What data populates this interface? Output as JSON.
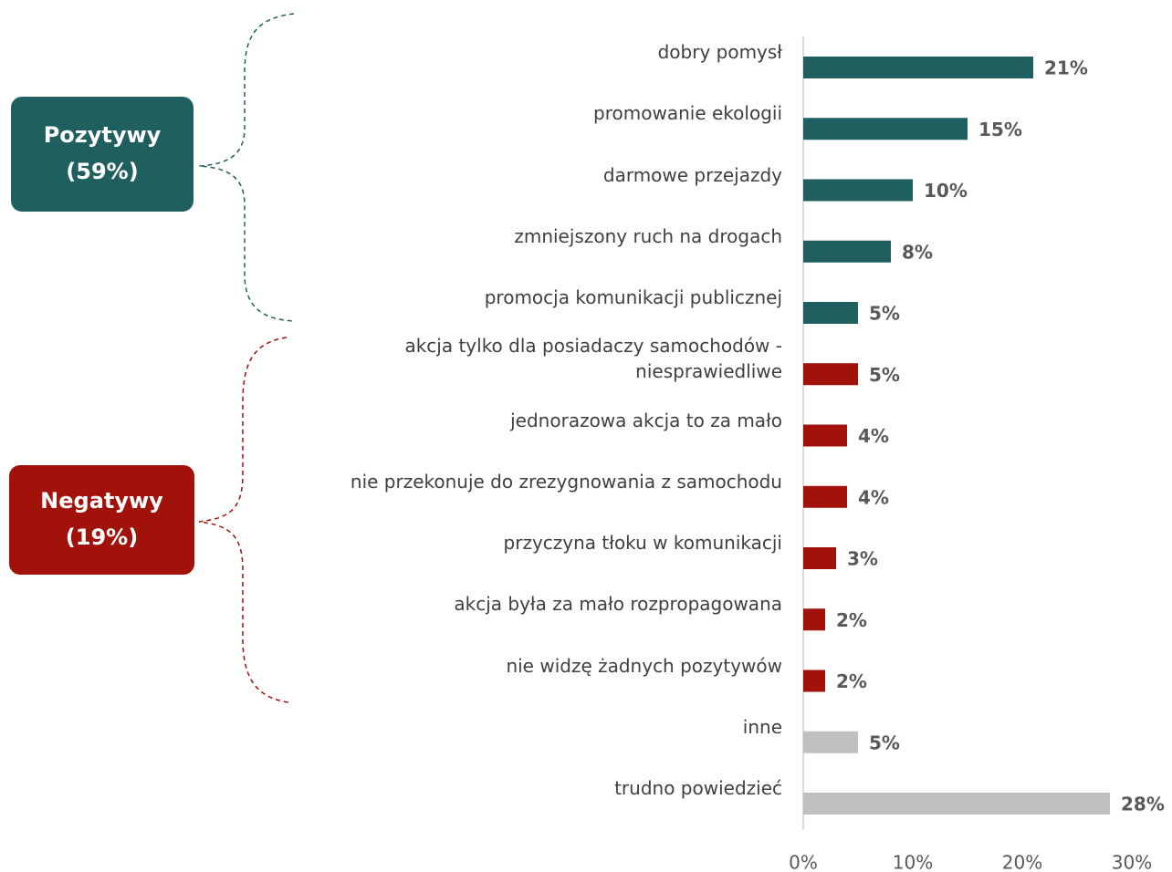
{
  "chart_data": {
    "type": "bar",
    "orientation": "horizontal",
    "categories": [
      "dobry pomysł",
      "promowanie ekologii",
      "darmowe przejazdy",
      "zmniejszony ruch na drogach",
      "promocja komunikacji publicznej",
      "akcja tylko dla posiadaczy samochodów - niesprawiedliwe",
      "jednorazowa akcja to za mało",
      "nie przekonuje do zrezygnowania z samochodu",
      "przyczyna tłoku w komunikacji",
      "akcja była za mało rozpropagowana",
      "nie widzę żadnych pozytywów",
      "inne",
      "trudno powiedzieć"
    ],
    "values": [
      21,
      15,
      10,
      8,
      5,
      5,
      4,
      4,
      3,
      2,
      2,
      5,
      28
    ],
    "value_labels": [
      "21%",
      "15%",
      "10%",
      "8%",
      "5%",
      "5%",
      "4%",
      "4%",
      "3%",
      "2%",
      "2%",
      "5%",
      "28%"
    ],
    "colors": [
      "#1f5f5f",
      "#1f5f5f",
      "#1f5f5f",
      "#1f5f5f",
      "#1f5f5f",
      "#a0120a",
      "#a0120a",
      "#a0120a",
      "#a0120a",
      "#a0120a",
      "#a0120a",
      "#c0c0c0",
      "#c0c0c0"
    ],
    "xlim": [
      0,
      30
    ],
    "xticks": [
      {
        "value": 0,
        "label": "0%"
      },
      {
        "value": 10,
        "label": "10%"
      },
      {
        "value": 20,
        "label": "20%"
      },
      {
        "value": 30,
        "label": "30%"
      }
    ],
    "annotations": [
      {
        "label": "Pozytywy",
        "share": "(59%)",
        "color": "#1f5f5f"
      },
      {
        "label": "Negatywy",
        "share": "(19%)",
        "color": "#a0120a"
      }
    ]
  }
}
